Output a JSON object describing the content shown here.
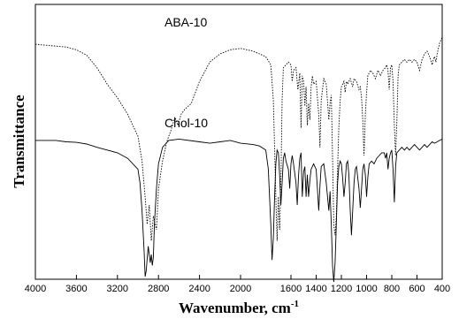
{
  "chart_data": {
    "type": "line",
    "title": "",
    "xlabel": "Wavenumber, cm",
    "xlabel_superscript": "-1",
    "ylabel": "Transmittance",
    "xlim": [
      4000,
      400
    ],
    "x_reversed": true,
    "x_ticks": [
      4000,
      3600,
      3200,
      2800,
      2400,
      2000,
      1600,
      1400,
      1200,
      1000,
      800,
      600,
      400
    ],
    "y_ticks": [],
    "grid": false,
    "legend": "none",
    "series": [
      {
        "name": "ABA-10",
        "style": "dotted",
        "color": "#000000",
        "points": [
          [
            4000,
            0.855
          ],
          [
            3850,
            0.85
          ],
          [
            3700,
            0.845
          ],
          [
            3600,
            0.835
          ],
          [
            3500,
            0.815
          ],
          [
            3400,
            0.77
          ],
          [
            3300,
            0.71
          ],
          [
            3200,
            0.66
          ],
          [
            3100,
            0.6
          ],
          [
            3000,
            0.52
          ],
          [
            2960,
            0.43
          ],
          [
            2930,
            0.3
          ],
          [
            2910,
            0.2
          ],
          [
            2890,
            0.27
          ],
          [
            2870,
            0.14
          ],
          [
            2850,
            0.23
          ],
          [
            2820,
            0.18
          ],
          [
            2800,
            0.33
          ],
          [
            2760,
            0.43
          ],
          [
            2720,
            0.5
          ],
          [
            2680,
            0.54
          ],
          [
            2640,
            0.59
          ],
          [
            2610,
            0.56
          ],
          [
            2580,
            0.6
          ],
          [
            2540,
            0.62
          ],
          [
            2480,
            0.64
          ],
          [
            2400,
            0.72
          ],
          [
            2300,
            0.79
          ],
          [
            2200,
            0.82
          ],
          [
            2100,
            0.835
          ],
          [
            2000,
            0.84
          ],
          [
            1900,
            0.83
          ],
          [
            1850,
            0.82
          ],
          [
            1800,
            0.81
          ],
          [
            1760,
            0.78
          ],
          [
            1740,
            0.65
          ],
          [
            1720,
            0.3
          ],
          [
            1710,
            0.14
          ],
          [
            1700,
            0.3
          ],
          [
            1690,
            0.18
          ],
          [
            1680,
            0.35
          ],
          [
            1670,
            0.65
          ],
          [
            1660,
            0.77
          ],
          [
            1640,
            0.78
          ],
          [
            1620,
            0.79
          ],
          [
            1600,
            0.78
          ],
          [
            1590,
            0.72
          ],
          [
            1580,
            0.76
          ],
          [
            1560,
            0.77
          ],
          [
            1545,
            0.69
          ],
          [
            1530,
            0.75
          ],
          [
            1520,
            0.55
          ],
          [
            1510,
            0.74
          ],
          [
            1500,
            0.72
          ],
          [
            1490,
            0.63
          ],
          [
            1480,
            0.7
          ],
          [
            1470,
            0.56
          ],
          [
            1460,
            0.64
          ],
          [
            1450,
            0.58
          ],
          [
            1440,
            0.7
          ],
          [
            1430,
            0.74
          ],
          [
            1420,
            0.71
          ],
          [
            1400,
            0.72
          ],
          [
            1380,
            0.6
          ],
          [
            1370,
            0.48
          ],
          [
            1360,
            0.65
          ],
          [
            1340,
            0.73
          ],
          [
            1320,
            0.71
          ],
          [
            1300,
            0.58
          ],
          [
            1290,
            0.64
          ],
          [
            1280,
            0.67
          ],
          [
            1270,
            0.45
          ],
          [
            1260,
            0.2
          ],
          [
            1250,
            0.16
          ],
          [
            1240,
            0.23
          ],
          [
            1230,
            0.4
          ],
          [
            1220,
            0.55
          ],
          [
            1210,
            0.65
          ],
          [
            1200,
            0.7
          ],
          [
            1180,
            0.72
          ],
          [
            1170,
            0.68
          ],
          [
            1160,
            0.72
          ],
          [
            1150,
            0.71
          ],
          [
            1130,
            0.73
          ],
          [
            1110,
            0.7
          ],
          [
            1100,
            0.73
          ],
          [
            1080,
            0.72
          ],
          [
            1060,
            0.69
          ],
          [
            1050,
            0.7
          ],
          [
            1040,
            0.66
          ],
          [
            1030,
            0.58
          ],
          [
            1020,
            0.45
          ],
          [
            1010,
            0.6
          ],
          [
            1000,
            0.68
          ],
          [
            990,
            0.74
          ],
          [
            970,
            0.76
          ],
          [
            950,
            0.75
          ],
          [
            930,
            0.73
          ],
          [
            910,
            0.76
          ],
          [
            890,
            0.74
          ],
          [
            870,
            0.76
          ],
          [
            850,
            0.77
          ],
          [
            840,
            0.78
          ],
          [
            830,
            0.76
          ],
          [
            820,
            0.69
          ],
          [
            810,
            0.77
          ],
          [
            800,
            0.78
          ],
          [
            790,
            0.72
          ],
          [
            780,
            0.56
          ],
          [
            770,
            0.45
          ],
          [
            760,
            0.57
          ],
          [
            750,
            0.74
          ],
          [
            740,
            0.78
          ],
          [
            720,
            0.79
          ],
          [
            700,
            0.8
          ],
          [
            680,
            0.79
          ],
          [
            660,
            0.8
          ],
          [
            640,
            0.79
          ],
          [
            620,
            0.8
          ],
          [
            600,
            0.79
          ],
          [
            580,
            0.76
          ],
          [
            560,
            0.8
          ],
          [
            540,
            0.82
          ],
          [
            520,
            0.83
          ],
          [
            500,
            0.81
          ],
          [
            480,
            0.78
          ],
          [
            470,
            0.8
          ],
          [
            460,
            0.81
          ],
          [
            450,
            0.79
          ],
          [
            440,
            0.82
          ],
          [
            430,
            0.84
          ],
          [
            420,
            0.86
          ],
          [
            410,
            0.87
          ],
          [
            400,
            0.88
          ]
        ]
      },
      {
        "name": "Chol-10",
        "style": "solid",
        "color": "#000000",
        "points": [
          [
            4000,
            0.505
          ],
          [
            3800,
            0.505
          ],
          [
            3700,
            0.5
          ],
          [
            3600,
            0.498
          ],
          [
            3500,
            0.492
          ],
          [
            3400,
            0.48
          ],
          [
            3300,
            0.47
          ],
          [
            3200,
            0.46
          ],
          [
            3100,
            0.44
          ],
          [
            3000,
            0.4
          ],
          [
            2980,
            0.35
          ],
          [
            2960,
            0.25
          ],
          [
            2940,
            0.1
          ],
          [
            2930,
            0.01
          ],
          [
            2920,
            0.03
          ],
          [
            2900,
            0.12
          ],
          [
            2880,
            0.06
          ],
          [
            2870,
            0.09
          ],
          [
            2860,
            0.05
          ],
          [
            2850,
            0.08
          ],
          [
            2840,
            0.2
          ],
          [
            2820,
            0.33
          ],
          [
            2800,
            0.42
          ],
          [
            2760,
            0.48
          ],
          [
            2700,
            0.505
          ],
          [
            2600,
            0.51
          ],
          [
            2400,
            0.5
          ],
          [
            2300,
            0.495
          ],
          [
            2200,
            0.5
          ],
          [
            2100,
            0.505
          ],
          [
            2000,
            0.495
          ],
          [
            1900,
            0.49
          ],
          [
            1850,
            0.485
          ],
          [
            1800,
            0.47
          ],
          [
            1780,
            0.4
          ],
          [
            1760,
            0.2
          ],
          [
            1750,
            0.07
          ],
          [
            1740,
            0.15
          ],
          [
            1730,
            0.3
          ],
          [
            1720,
            0.42
          ],
          [
            1710,
            0.47
          ],
          [
            1700,
            0.46
          ],
          [
            1690,
            0.38
          ],
          [
            1680,
            0.27
          ],
          [
            1670,
            0.35
          ],
          [
            1660,
            0.44
          ],
          [
            1650,
            0.46
          ],
          [
            1640,
            0.43
          ],
          [
            1620,
            0.4
          ],
          [
            1610,
            0.33
          ],
          [
            1600,
            0.42
          ],
          [
            1590,
            0.45
          ],
          [
            1580,
            0.42
          ],
          [
            1560,
            0.35
          ],
          [
            1550,
            0.27
          ],
          [
            1540,
            0.38
          ],
          [
            1530,
            0.44
          ],
          [
            1520,
            0.46
          ],
          [
            1510,
            0.3
          ],
          [
            1500,
            0.39
          ],
          [
            1490,
            0.41
          ],
          [
            1480,
            0.3
          ],
          [
            1470,
            0.38
          ],
          [
            1460,
            0.3
          ],
          [
            1450,
            0.36
          ],
          [
            1440,
            0.4
          ],
          [
            1420,
            0.42
          ],
          [
            1400,
            0.4
          ],
          [
            1390,
            0.33
          ],
          [
            1380,
            0.25
          ],
          [
            1370,
            0.34
          ],
          [
            1360,
            0.41
          ],
          [
            1340,
            0.42
          ],
          [
            1320,
            0.35
          ],
          [
            1300,
            0.25
          ],
          [
            1290,
            0.32
          ],
          [
            1280,
            0.2
          ],
          [
            1270,
            0.05
          ],
          [
            1260,
            -0.01
          ],
          [
            1250,
            0.06
          ],
          [
            1240,
            0.2
          ],
          [
            1230,
            0.35
          ],
          [
            1220,
            0.41
          ],
          [
            1210,
            0.43
          ],
          [
            1200,
            0.42
          ],
          [
            1190,
            0.37
          ],
          [
            1180,
            0.3
          ],
          [
            1170,
            0.35
          ],
          [
            1160,
            0.42
          ],
          [
            1150,
            0.43
          ],
          [
            1140,
            0.38
          ],
          [
            1130,
            0.25
          ],
          [
            1120,
            0.16
          ],
          [
            1110,
            0.25
          ],
          [
            1100,
            0.35
          ],
          [
            1090,
            0.4
          ],
          [
            1080,
            0.41
          ],
          [
            1060,
            0.33
          ],
          [
            1050,
            0.26
          ],
          [
            1040,
            0.33
          ],
          [
            1030,
            0.4
          ],
          [
            1020,
            0.42
          ],
          [
            1010,
            0.38
          ],
          [
            1000,
            0.3
          ],
          [
            990,
            0.37
          ],
          [
            980,
            0.42
          ],
          [
            960,
            0.43
          ],
          [
            940,
            0.42
          ],
          [
            920,
            0.44
          ],
          [
            900,
            0.45
          ],
          [
            880,
            0.46
          ],
          [
            860,
            0.46
          ],
          [
            850,
            0.44
          ],
          [
            840,
            0.46
          ],
          [
            830,
            0.4
          ],
          [
            820,
            0.44
          ],
          [
            810,
            0.46
          ],
          [
            800,
            0.47
          ],
          [
            790,
            0.4
          ],
          [
            780,
            0.28
          ],
          [
            770,
            0.41
          ],
          [
            760,
            0.46
          ],
          [
            740,
            0.47
          ],
          [
            720,
            0.48
          ],
          [
            700,
            0.47
          ],
          [
            680,
            0.48
          ],
          [
            660,
            0.47
          ],
          [
            640,
            0.48
          ],
          [
            620,
            0.49
          ],
          [
            600,
            0.48
          ],
          [
            580,
            0.47
          ],
          [
            560,
            0.48
          ],
          [
            540,
            0.49
          ],
          [
            520,
            0.48
          ],
          [
            500,
            0.49
          ],
          [
            480,
            0.5
          ],
          [
            460,
            0.495
          ],
          [
            440,
            0.5
          ],
          [
            420,
            0.505
          ],
          [
            400,
            0.51
          ]
        ]
      }
    ]
  }
}
